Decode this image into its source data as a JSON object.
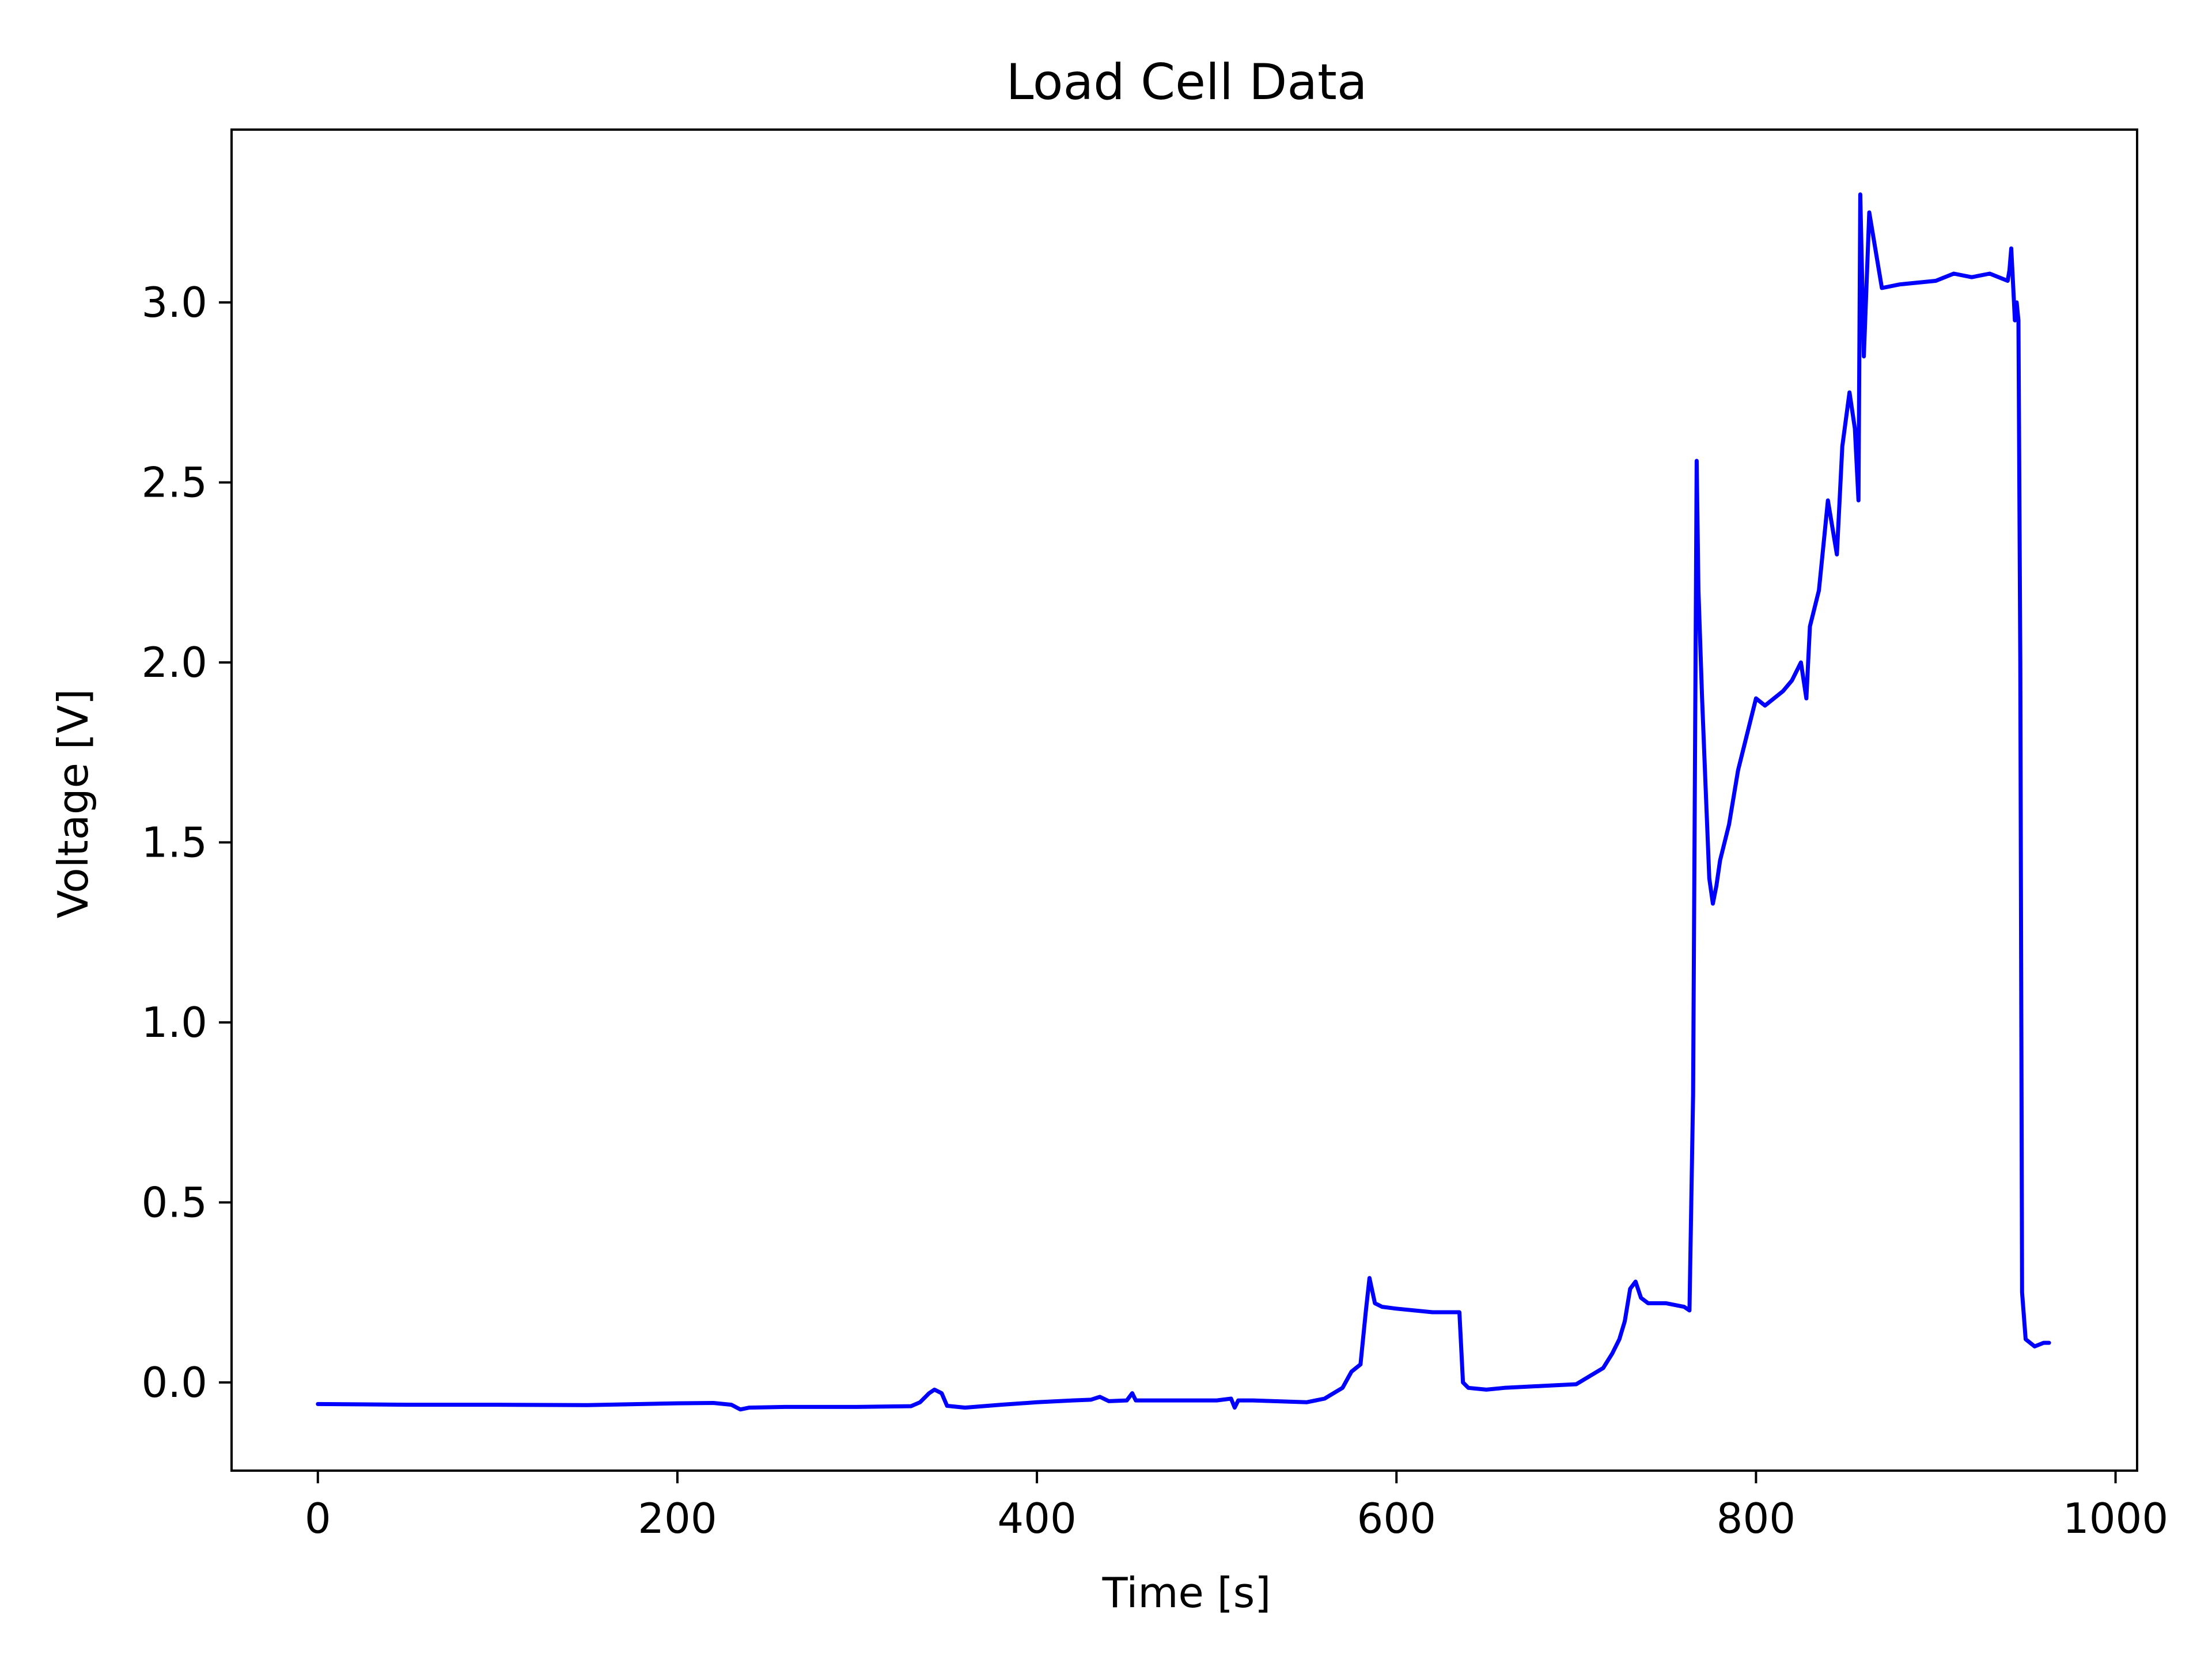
{
  "chart_data": {
    "type": "line",
    "title": "Load Cell Data",
    "xlabel": "Time [s]",
    "ylabel": "Voltage [V]",
    "xlim": [
      -48,
      1012
    ],
    "ylim": [
      -0.245,
      3.48
    ],
    "xticks": [
      0,
      200,
      400,
      600,
      800,
      1000
    ],
    "xtick_labels": [
      "0",
      "200",
      "400",
      "600",
      "800",
      "1000"
    ],
    "yticks": [
      0.0,
      0.5,
      1.0,
      1.5,
      2.0,
      2.5,
      3.0
    ],
    "ytick_labels": [
      "0.0",
      "0.5",
      "1.0",
      "1.5",
      "2.0",
      "2.5",
      "3.0"
    ],
    "grid": false,
    "legend": "none",
    "series": [
      {
        "color": "#0000ff",
        "x": [
          0,
          50,
          100,
          150,
          200,
          220,
          230,
          235,
          240,
          260,
          300,
          330,
          335,
          340,
          343,
          347,
          350,
          360,
          380,
          400,
          420,
          430,
          435,
          440,
          450,
          453,
          455,
          470,
          500,
          508,
          510,
          512,
          520,
          550,
          560,
          565,
          570,
          575,
          580,
          583,
          585,
          588,
          592,
          600,
          620,
          635,
          637,
          640,
          650,
          660,
          680,
          700,
          705,
          715,
          720,
          724,
          727,
          730,
          733,
          736,
          740,
          750,
          760,
          763,
          765,
          767,
          768,
          770,
          772,
          774,
          776,
          778,
          780,
          785,
          790,
          795,
          800,
          805,
          810,
          815,
          820,
          825,
          828,
          830,
          835,
          838,
          840,
          845,
          848,
          852,
          855,
          857,
          858,
          860,
          863,
          870,
          880,
          900,
          910,
          920,
          930,
          940,
          941,
          942,
          943,
          944,
          945,
          946,
          947,
          948,
          950,
          955,
          960,
          963
        ],
        "y": [
          -0.06,
          -0.062,
          -0.062,
          -0.063,
          -0.058,
          -0.057,
          -0.062,
          -0.075,
          -0.07,
          -0.068,
          -0.068,
          -0.066,
          -0.055,
          -0.03,
          -0.02,
          -0.03,
          -0.065,
          -0.07,
          -0.062,
          -0.055,
          -0.05,
          -0.048,
          -0.04,
          -0.052,
          -0.05,
          -0.03,
          -0.05,
          -0.05,
          -0.05,
          -0.045,
          -0.07,
          -0.05,
          -0.05,
          -0.055,
          -0.045,
          -0.03,
          -0.015,
          0.03,
          0.05,
          0.2,
          0.29,
          0.22,
          0.21,
          0.205,
          0.195,
          0.195,
          0.0,
          -0.015,
          -0.02,
          -0.015,
          -0.01,
          -0.005,
          0.01,
          0.04,
          0.08,
          0.12,
          0.17,
          0.26,
          0.28,
          0.235,
          0.22,
          0.22,
          0.21,
          0.2,
          0.8,
          2.56,
          2.2,
          1.9,
          1.65,
          1.4,
          1.33,
          1.38,
          1.45,
          1.55,
          1.7,
          1.8,
          1.9,
          1.88,
          1.9,
          1.92,
          1.95,
          2.0,
          1.9,
          2.1,
          2.2,
          2.35,
          2.45,
          2.3,
          2.6,
          2.75,
          2.65,
          2.45,
          3.3,
          2.85,
          3.25,
          3.04,
          3.05,
          3.06,
          3.08,
          3.07,
          3.08,
          3.06,
          3.09,
          3.15,
          3.05,
          2.95,
          3.0,
          2.95,
          2.0,
          0.25,
          0.12,
          0.1,
          0.11,
          0.11
        ]
      }
    ]
  }
}
